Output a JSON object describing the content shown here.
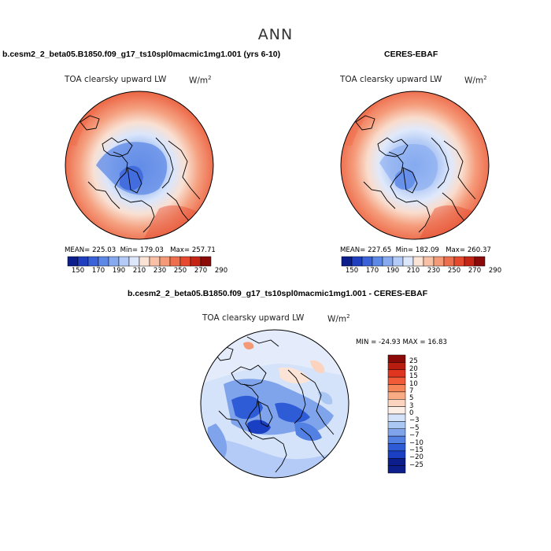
{
  "header": {
    "title": "ANN"
  },
  "panels": [
    {
      "case_title": "b.cesm2_2_beta05.B1850.f09_g17_ts10spl0macmic1mg1.001 (yrs 6-10)",
      "variable": "TOA clearsky upward LW",
      "units_base": "W/m",
      "units_exp": "2",
      "stats": {
        "mean_label": "MEAN=",
        "mean": "225.03",
        "min_label": "Min=",
        "min": "179.03",
        "max_label": "Max=",
        "max": "257.71"
      }
    },
    {
      "case_title": "CERES-EBAF",
      "variable": "TOA clearsky upward LW",
      "units_base": "W/m",
      "units_exp": "2",
      "stats": {
        "mean_label": "MEAN=",
        "mean": "227.65",
        "min_label": "Min=",
        "min": "182.09",
        "max_label": "Max=",
        "max": "260.37"
      }
    },
    {
      "case_title": "b.cesm2_2_beta05.B1850.f09_g17_ts10spl0macmic1mg1.001 - CERES-EBAF",
      "variable": "TOA clearsky upward LW",
      "units_base": "W/m",
      "units_exp": "2",
      "stats_text": "MIN = -24.93 MAX =  16.83"
    }
  ],
  "colorbar_abs": {
    "colors": [
      "#0b1e8c",
      "#1f3fbf",
      "#3a63d9",
      "#5d88e6",
      "#86aaf0",
      "#b3cbf6",
      "#dce7fb",
      "#fbe3d6",
      "#f8c0a5",
      "#f49a77",
      "#ee6f4d",
      "#e44a2e",
      "#c52515",
      "#8b0a08"
    ],
    "labels": [
      "150",
      "170",
      "190",
      "210",
      "230",
      "250",
      "270",
      "290"
    ]
  },
  "colorbar_diff": {
    "colors": [
      "#8b0a08",
      "#b81d10",
      "#e0351f",
      "#f15b38",
      "#f68557",
      "#f9ab83",
      "#fcd3be",
      "#fbeee6",
      "#d5e3fa",
      "#aac6f3",
      "#7fa4eb",
      "#5280e3",
      "#2e5cd6",
      "#1a3fc2",
      "#0b1e8c"
    ],
    "labels": [
      "25",
      "20",
      "15",
      "10",
      "7",
      "5",
      "3",
      "0",
      "−3",
      "−5",
      "−7",
      "−10",
      "−15",
      "−20",
      "−25"
    ]
  }
}
